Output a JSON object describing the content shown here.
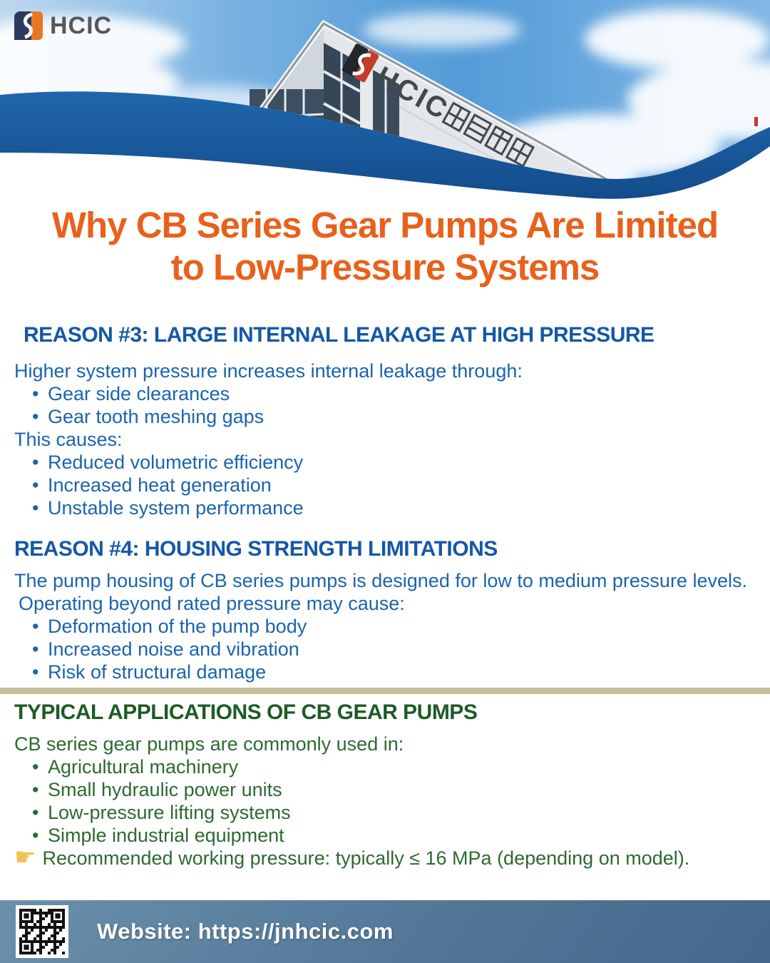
{
  "brand": {
    "logo_text": "HCIC",
    "building_sign_latin": "HCIC",
    "building_sign_cjk": "華辰重科"
  },
  "title": {
    "line1": "Why CB Series Gear Pumps Are Limited",
    "line2": "to Low-Pressure Systems"
  },
  "reason3": {
    "heading": "REASON #3: LARGE INTERNAL LEAKAGE AT HIGH PRESSURE",
    "intro": "Higher system pressure increases internal leakage through:",
    "bullets": [
      "Gear side clearances",
      "Gear tooth meshing gaps"
    ],
    "causes_label": "This causes:",
    "causes": [
      "Reduced volumetric efficiency",
      "Increased heat generation",
      "Unstable system performance"
    ]
  },
  "reason4": {
    "heading": "REASON #4: HOUSING STRENGTH LIMITATIONS",
    "para1": "The pump housing of CB series pumps is designed for low to medium pressure levels.",
    "para2": "Operating beyond rated pressure may cause:",
    "bullets": [
      "Deformation of the pump body",
      "Increased noise and vibration",
      "Risk of structural damage"
    ]
  },
  "applications": {
    "heading": "TYPICAL APPLICATIONS OF CB GEAR PUMPS",
    "intro": "CB series gear pumps are commonly used in:",
    "bullets": [
      "Agricultural machinery",
      "Small hydraulic power units",
      "Low-pressure lifting systems",
      "Simple industrial equipment"
    ],
    "note": "Recommended working pressure: typically ≤ 16 MPa (depending on model)."
  },
  "footer": {
    "website": "Website: https://jnhcic.com"
  },
  "icons": {
    "pointer": "☛"
  },
  "colors": {
    "title_orange": "#E8611C",
    "heading_blue": "#1558A6",
    "body_blue": "#1A64AE",
    "heading_green": "#1D5B25",
    "body_green": "#2C6A30",
    "divider_tan": "#C9BC9B",
    "wave_blue": "#1A5A9E",
    "logo_navy": "#2B3A5E",
    "logo_orange": "#E87722",
    "footer_blue": "#527798"
  }
}
